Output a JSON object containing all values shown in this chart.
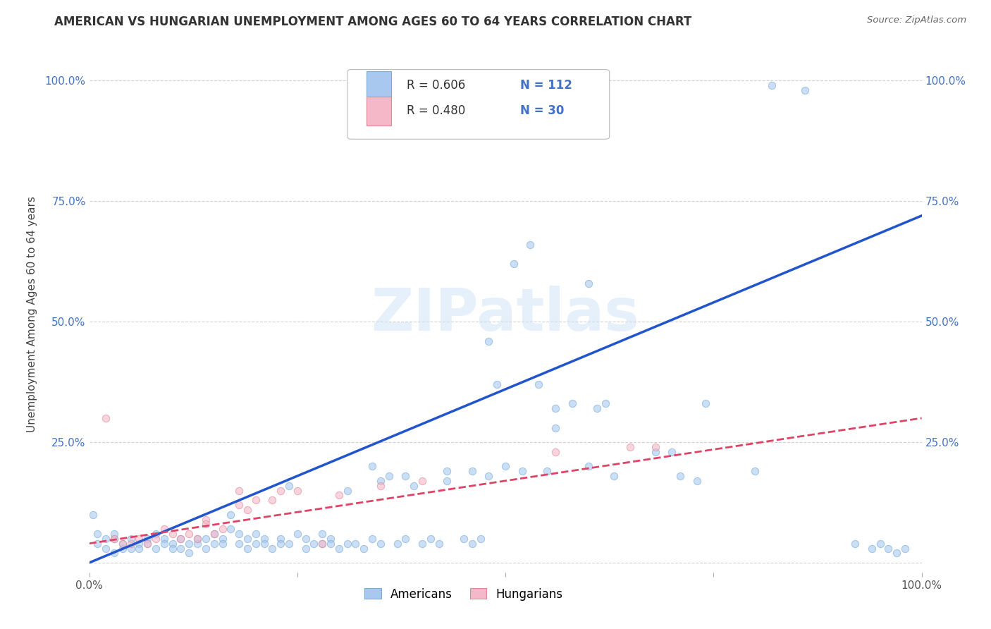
{
  "title": "AMERICAN VS HUNGARIAN UNEMPLOYMENT AMONG AGES 60 TO 64 YEARS CORRELATION CHART",
  "source": "Source: ZipAtlas.com",
  "ylabel": "Unemployment Among Ages 60 to 64 years",
  "xlim": [
    0,
    1
  ],
  "ylim": [
    -0.02,
    1.05
  ],
  "american_color": "#a8c8f0",
  "american_edge_color": "#7badd4",
  "hungarian_color": "#f4b8c8",
  "hungarian_edge_color": "#e08898",
  "american_line_color": "#2255cc",
  "hungarian_line_color": "#dd4466",
  "watermark": "ZIPatlas",
  "legend_R_american": "R = 0.606",
  "legend_N_american": "N = 112",
  "legend_R_hungarian": "R = 0.480",
  "legend_N_hungarian": "N = 30",
  "american_scatter": [
    [
      0.005,
      0.1
    ],
    [
      0.01,
      0.06
    ],
    [
      0.01,
      0.04
    ],
    [
      0.02,
      0.05
    ],
    [
      0.02,
      0.03
    ],
    [
      0.03,
      0.05
    ],
    [
      0.03,
      0.06
    ],
    [
      0.03,
      0.02
    ],
    [
      0.04,
      0.04
    ],
    [
      0.04,
      0.03
    ],
    [
      0.05,
      0.05
    ],
    [
      0.05,
      0.03
    ],
    [
      0.06,
      0.04
    ],
    [
      0.06,
      0.03
    ],
    [
      0.07,
      0.05
    ],
    [
      0.07,
      0.04
    ],
    [
      0.08,
      0.03
    ],
    [
      0.08,
      0.06
    ],
    [
      0.09,
      0.05
    ],
    [
      0.09,
      0.04
    ],
    [
      0.1,
      0.04
    ],
    [
      0.1,
      0.03
    ],
    [
      0.11,
      0.03
    ],
    [
      0.11,
      0.05
    ],
    [
      0.12,
      0.04
    ],
    [
      0.12,
      0.02
    ],
    [
      0.13,
      0.05
    ],
    [
      0.13,
      0.04
    ],
    [
      0.14,
      0.03
    ],
    [
      0.14,
      0.05
    ],
    [
      0.15,
      0.04
    ],
    [
      0.15,
      0.06
    ],
    [
      0.16,
      0.05
    ],
    [
      0.16,
      0.04
    ],
    [
      0.17,
      0.1
    ],
    [
      0.17,
      0.07
    ],
    [
      0.18,
      0.06
    ],
    [
      0.18,
      0.04
    ],
    [
      0.19,
      0.05
    ],
    [
      0.19,
      0.03
    ],
    [
      0.2,
      0.04
    ],
    [
      0.2,
      0.06
    ],
    [
      0.21,
      0.05
    ],
    [
      0.21,
      0.04
    ],
    [
      0.22,
      0.03
    ],
    [
      0.23,
      0.05
    ],
    [
      0.23,
      0.04
    ],
    [
      0.24,
      0.16
    ],
    [
      0.24,
      0.04
    ],
    [
      0.25,
      0.06
    ],
    [
      0.26,
      0.03
    ],
    [
      0.26,
      0.05
    ],
    [
      0.27,
      0.04
    ],
    [
      0.28,
      0.06
    ],
    [
      0.28,
      0.04
    ],
    [
      0.29,
      0.05
    ],
    [
      0.29,
      0.04
    ],
    [
      0.3,
      0.03
    ],
    [
      0.31,
      0.04
    ],
    [
      0.31,
      0.15
    ],
    [
      0.32,
      0.04
    ],
    [
      0.33,
      0.03
    ],
    [
      0.34,
      0.2
    ],
    [
      0.34,
      0.05
    ],
    [
      0.35,
      0.04
    ],
    [
      0.35,
      0.17
    ],
    [
      0.36,
      0.18
    ],
    [
      0.37,
      0.04
    ],
    [
      0.38,
      0.18
    ],
    [
      0.38,
      0.05
    ],
    [
      0.39,
      0.16
    ],
    [
      0.4,
      0.04
    ],
    [
      0.41,
      0.05
    ],
    [
      0.42,
      0.04
    ],
    [
      0.43,
      0.19
    ],
    [
      0.43,
      0.17
    ],
    [
      0.45,
      0.05
    ],
    [
      0.46,
      0.19
    ],
    [
      0.46,
      0.04
    ],
    [
      0.47,
      0.05
    ],
    [
      0.48,
      0.46
    ],
    [
      0.48,
      0.18
    ],
    [
      0.49,
      0.37
    ],
    [
      0.5,
      0.2
    ],
    [
      0.51,
      0.62
    ],
    [
      0.52,
      0.19
    ],
    [
      0.53,
      0.66
    ],
    [
      0.54,
      0.37
    ],
    [
      0.55,
      0.19
    ],
    [
      0.56,
      0.32
    ],
    [
      0.56,
      0.28
    ],
    [
      0.58,
      0.33
    ],
    [
      0.6,
      0.58
    ],
    [
      0.6,
      0.2
    ],
    [
      0.61,
      0.32
    ],
    [
      0.62,
      0.33
    ],
    [
      0.63,
      0.18
    ],
    [
      0.68,
      0.23
    ],
    [
      0.7,
      0.23
    ],
    [
      0.71,
      0.18
    ],
    [
      0.73,
      0.17
    ],
    [
      0.74,
      0.33
    ],
    [
      0.8,
      0.19
    ],
    [
      0.82,
      0.99
    ],
    [
      0.86,
      0.98
    ],
    [
      0.92,
      0.04
    ],
    [
      0.94,
      0.03
    ],
    [
      0.95,
      0.04
    ],
    [
      0.96,
      0.03
    ],
    [
      0.97,
      0.02
    ],
    [
      0.98,
      0.03
    ]
  ],
  "hungarian_scatter": [
    [
      0.02,
      0.3
    ],
    [
      0.03,
      0.05
    ],
    [
      0.04,
      0.04
    ],
    [
      0.05,
      0.04
    ],
    [
      0.06,
      0.05
    ],
    [
      0.07,
      0.04
    ],
    [
      0.08,
      0.05
    ],
    [
      0.09,
      0.07
    ],
    [
      0.1,
      0.06
    ],
    [
      0.11,
      0.05
    ],
    [
      0.12,
      0.06
    ],
    [
      0.13,
      0.05
    ],
    [
      0.14,
      0.09
    ],
    [
      0.14,
      0.08
    ],
    [
      0.15,
      0.06
    ],
    [
      0.16,
      0.07
    ],
    [
      0.18,
      0.15
    ],
    [
      0.18,
      0.12
    ],
    [
      0.19,
      0.11
    ],
    [
      0.2,
      0.13
    ],
    [
      0.22,
      0.13
    ],
    [
      0.23,
      0.15
    ],
    [
      0.25,
      0.15
    ],
    [
      0.28,
      0.04
    ],
    [
      0.3,
      0.14
    ],
    [
      0.35,
      0.16
    ],
    [
      0.4,
      0.17
    ],
    [
      0.56,
      0.23
    ],
    [
      0.65,
      0.24
    ],
    [
      0.68,
      0.24
    ]
  ],
  "american_trendline": [
    [
      0.0,
      0.0
    ],
    [
      1.0,
      0.72
    ]
  ],
  "hungarian_trendline": [
    [
      0.0,
      0.04
    ],
    [
      1.0,
      0.3
    ]
  ],
  "background_color": "#ffffff",
  "grid_color": "#cccccc",
  "title_fontsize": 12,
  "marker_size": 55,
  "tick_color": "#4472c4"
}
